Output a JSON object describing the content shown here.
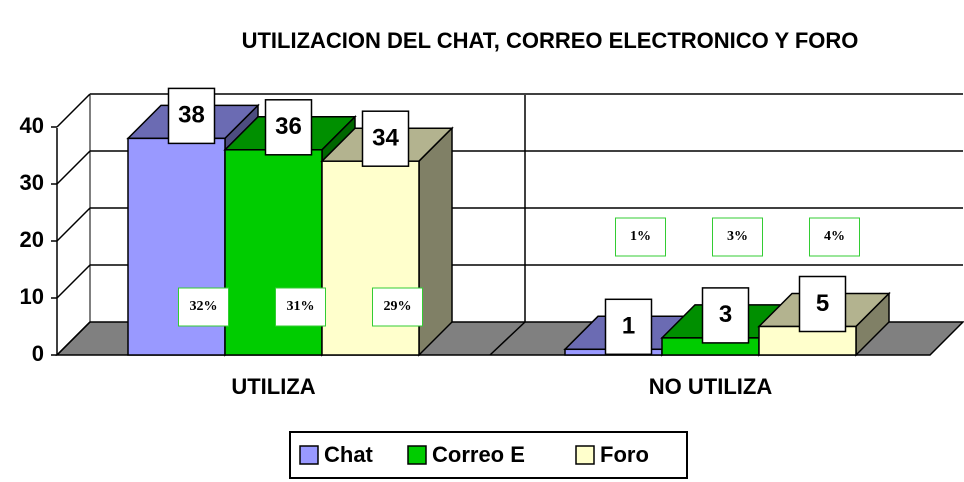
{
  "chart_data": {
    "type": "bar3d",
    "title": "UTILIZACION DEL CHAT, CORREO ELECTRONICO Y FORO",
    "categories": [
      "UTILIZA",
      "NO UTILIZA"
    ],
    "series": [
      {
        "name": "Chat",
        "color": "#9999ff",
        "label_color": "#ff0000",
        "values": [
          38,
          1
        ],
        "percent_labels": [
          "32%",
          "1%"
        ]
      },
      {
        "name": "Correo E",
        "color": "#00cc00",
        "label_color": "#0000ff",
        "values": [
          36,
          3
        ],
        "percent_labels": [
          "31%",
          "3%"
        ]
      },
      {
        "name": "Foro",
        "color": "#ffffcc",
        "label_color": "#000000",
        "values": [
          34,
          5
        ],
        "percent_labels": [
          "29%",
          "4%"
        ]
      }
    ],
    "ylim": [
      0,
      40
    ],
    "yticks": [
      0,
      10,
      20,
      30,
      40
    ],
    "grid": true,
    "legend": "bottom"
  }
}
